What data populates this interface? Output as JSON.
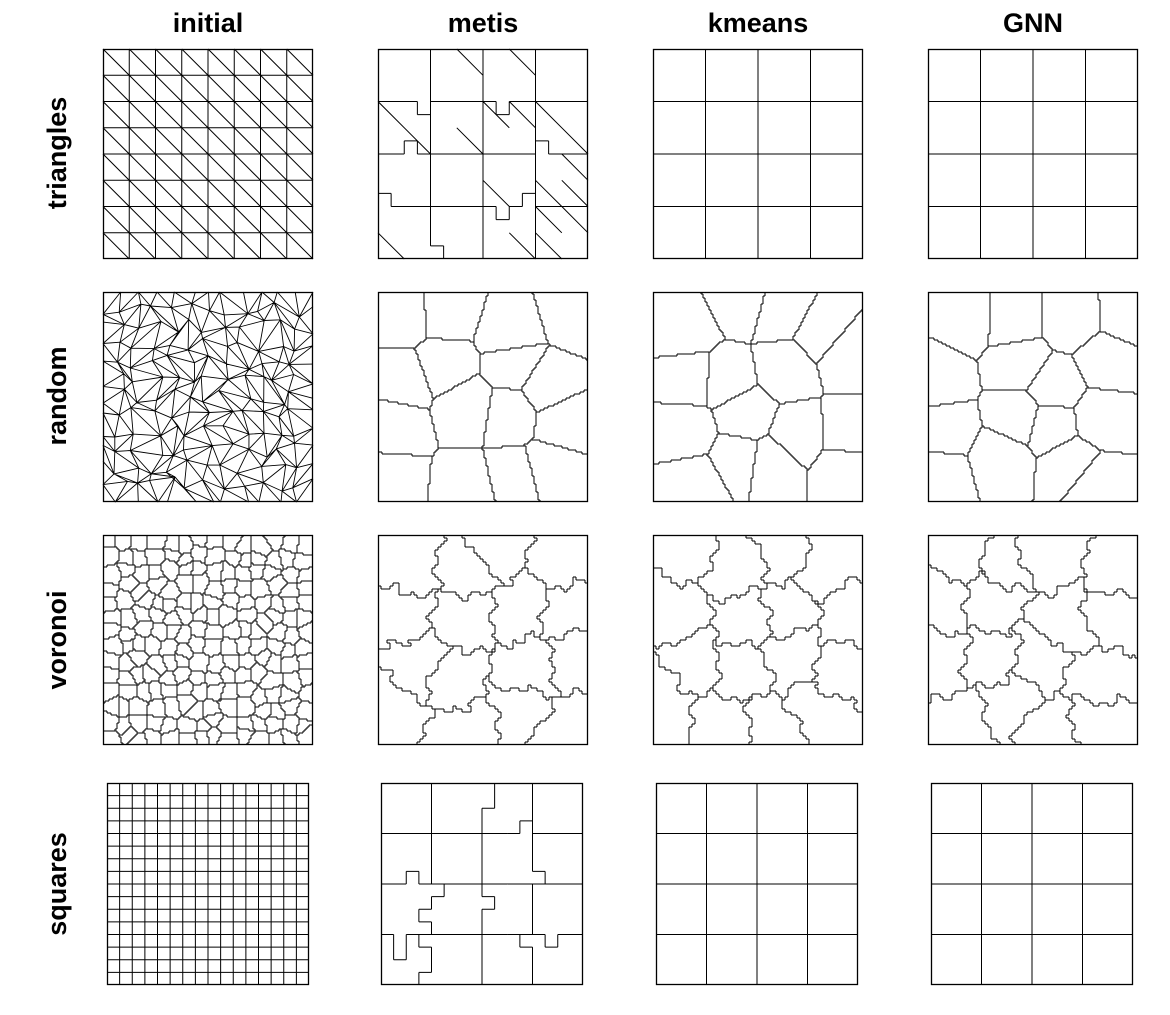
{
  "figure": {
    "columns": [
      "initial",
      "metis",
      "kmeans",
      "GNN"
    ],
    "rows": [
      "triangles",
      "random",
      "voronoi",
      "squares"
    ]
  }
}
